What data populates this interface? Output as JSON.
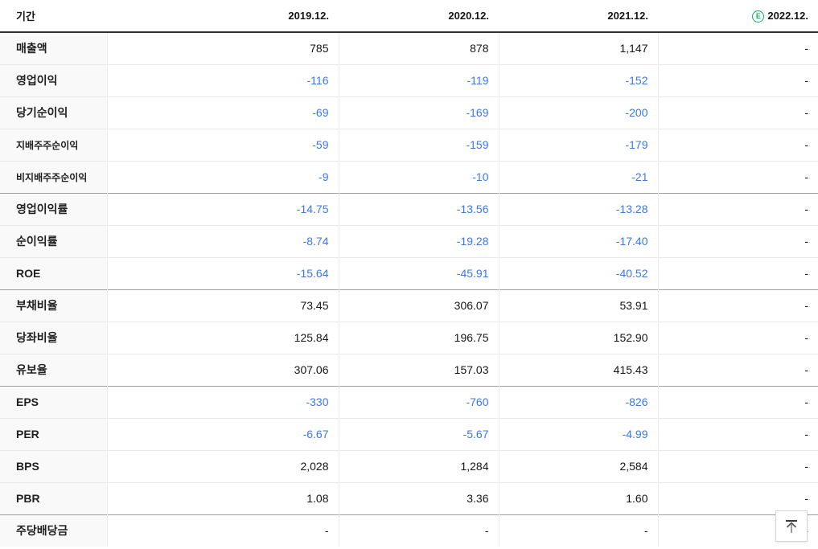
{
  "table": {
    "header": {
      "period_label": "기간",
      "columns": [
        "2019.12.",
        "2020.12.",
        "2021.12.",
        "2022.12."
      ],
      "estimate_letter": "E",
      "estimate_color": "#12b066"
    },
    "negative_value_color": "#3b78e7",
    "rows": [
      {
        "label": "매출액",
        "values": [
          "785",
          "878",
          "1,147",
          "-"
        ],
        "small": false,
        "group_start": false
      },
      {
        "label": "영업이익",
        "values": [
          "-116",
          "-119",
          "-152",
          "-"
        ],
        "small": false,
        "group_start": false
      },
      {
        "label": "당기순이익",
        "values": [
          "-69",
          "-169",
          "-200",
          "-"
        ],
        "small": false,
        "group_start": false
      },
      {
        "label": "지배주주순이익",
        "values": [
          "-59",
          "-159",
          "-179",
          "-"
        ],
        "small": true,
        "group_start": false
      },
      {
        "label": "비지배주주순이익",
        "values": [
          "-9",
          "-10",
          "-21",
          "-"
        ],
        "small": true,
        "group_start": false
      },
      {
        "label": "영업이익률",
        "values": [
          "-14.75",
          "-13.56",
          "-13.28",
          "-"
        ],
        "small": false,
        "group_start": true
      },
      {
        "label": "순이익률",
        "values": [
          "-8.74",
          "-19.28",
          "-17.40",
          "-"
        ],
        "small": false,
        "group_start": false
      },
      {
        "label": "ROE",
        "values": [
          "-15.64",
          "-45.91",
          "-40.52",
          "-"
        ],
        "small": false,
        "group_start": false
      },
      {
        "label": "부채비율",
        "values": [
          "73.45",
          "306.07",
          "53.91",
          "-"
        ],
        "small": false,
        "group_start": true
      },
      {
        "label": "당좌비율",
        "values": [
          "125.84",
          "196.75",
          "152.90",
          "-"
        ],
        "small": false,
        "group_start": false
      },
      {
        "label": "유보율",
        "values": [
          "307.06",
          "157.03",
          "415.43",
          "-"
        ],
        "small": false,
        "group_start": false
      },
      {
        "label": "EPS",
        "values": [
          "-330",
          "-760",
          "-826",
          "-"
        ],
        "small": false,
        "group_start": true
      },
      {
        "label": "PER",
        "values": [
          "-6.67",
          "-5.67",
          "-4.99",
          "-"
        ],
        "small": false,
        "group_start": false
      },
      {
        "label": "BPS",
        "values": [
          "2,028",
          "1,284",
          "2,584",
          "-"
        ],
        "small": false,
        "group_start": false
      },
      {
        "label": "PBR",
        "values": [
          "1.08",
          "3.36",
          "1.60",
          "-"
        ],
        "small": false,
        "group_start": false
      },
      {
        "label": "주당배당금",
        "values": [
          "-",
          "-",
          "-",
          "-"
        ],
        "small": false,
        "group_start": true
      }
    ]
  },
  "scroll_top_button": {
    "icon": "arrow-up-to-top"
  }
}
